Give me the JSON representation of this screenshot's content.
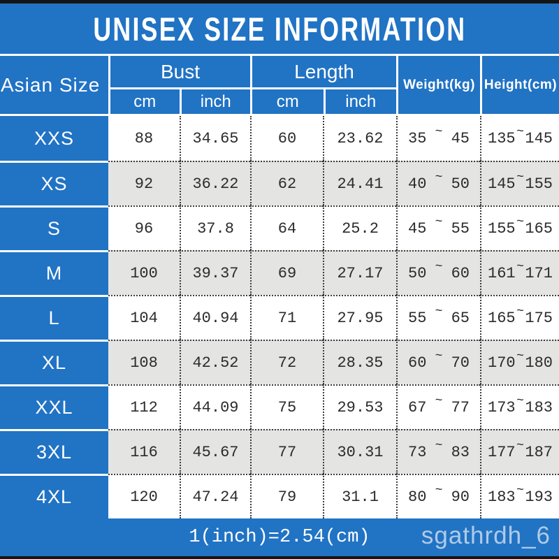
{
  "title": "UNISEX SIZE INFORMATION",
  "header": {
    "asian_size": "Asian Size",
    "bust": "Bust",
    "length": "Length",
    "bust_cm": "cm",
    "bust_inch": "inch",
    "length_cm": "cm",
    "length_inch": "inch",
    "weight": "Weight(kg)",
    "height": "Height(cm)"
  },
  "tilde": "~",
  "rows": [
    {
      "size": "XXS",
      "bust_cm": "88",
      "bust_inch": "34.65",
      "length_cm": "60",
      "length_inch": "23.62",
      "weight": {
        "min": "35",
        "max": "45"
      },
      "height": {
        "min": "135",
        "max": "145"
      }
    },
    {
      "size": "XS",
      "bust_cm": "92",
      "bust_inch": "36.22",
      "length_cm": "62",
      "length_inch": "24.41",
      "weight": {
        "min": "40",
        "max": "50"
      },
      "height": {
        "min": "145",
        "max": "155"
      }
    },
    {
      "size": "S",
      "bust_cm": "96",
      "bust_inch": "37.8",
      "length_cm": "64",
      "length_inch": "25.2",
      "weight": {
        "min": "45",
        "max": "55"
      },
      "height": {
        "min": "155",
        "max": "165"
      }
    },
    {
      "size": "M",
      "bust_cm": "100",
      "bust_inch": "39.37",
      "length_cm": "69",
      "length_inch": "27.17",
      "weight": {
        "min": "50",
        "max": "60"
      },
      "height": {
        "min": "161",
        "max": "171"
      }
    },
    {
      "size": "L",
      "bust_cm": "104",
      "bust_inch": "40.94",
      "length_cm": "71",
      "length_inch": "27.95",
      "weight": {
        "min": "55",
        "max": "65"
      },
      "height": {
        "min": "165",
        "max": "175"
      }
    },
    {
      "size": "XL",
      "bust_cm": "108",
      "bust_inch": "42.52",
      "length_cm": "72",
      "length_inch": "28.35",
      "weight": {
        "min": "60",
        "max": "70"
      },
      "height": {
        "min": "170",
        "max": "180"
      }
    },
    {
      "size": "XXL",
      "bust_cm": "112",
      "bust_inch": "44.09",
      "length_cm": "75",
      "length_inch": "29.53",
      "weight": {
        "min": "67",
        "max": "77"
      },
      "height": {
        "min": "173",
        "max": "183"
      }
    },
    {
      "size": "3XL",
      "bust_cm": "116",
      "bust_inch": "45.67",
      "length_cm": "77",
      "length_inch": "30.31",
      "weight": {
        "min": "73",
        "max": "83"
      },
      "height": {
        "min": "177",
        "max": "187"
      }
    },
    {
      "size": "4XL",
      "bust_cm": "120",
      "bust_inch": "47.24",
      "length_cm": "79",
      "length_inch": "31.1",
      "weight": {
        "min": "80",
        "max": "90"
      },
      "height": {
        "min": "183",
        "max": "193"
      }
    }
  ],
  "footer": {
    "conversion": "1(inch)=2.54(cm)",
    "watermark": "sgathrdh_6"
  },
  "colors": {
    "blue": "#2173c4",
    "bar_black": "#151515",
    "row_alt": "#e4e4e3",
    "dotted_line": "#3c3c3c"
  }
}
